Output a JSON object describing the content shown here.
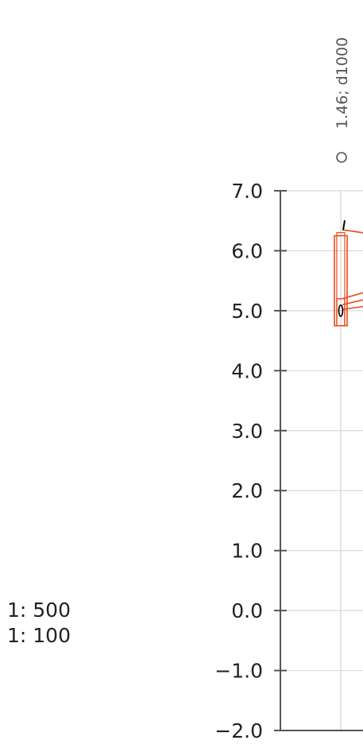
{
  "chart_data": {
    "type": "scatter",
    "title": "",
    "xlabel": "",
    "ylabel": "",
    "ylim": [
      -2.0,
      7.0
    ],
    "y_ticks": [
      {
        "value": 7.0,
        "label": "7.0"
      },
      {
        "value": 6.0,
        "label": "6.0"
      },
      {
        "value": 5.0,
        "label": "5.0"
      },
      {
        "value": 4.0,
        "label": "4.0"
      },
      {
        "value": 3.0,
        "label": "3.0"
      },
      {
        "value": 2.0,
        "label": "2.0"
      },
      {
        "value": 1.0,
        "label": "1.0"
      },
      {
        "value": 0.0,
        "label": "0.0"
      },
      {
        "value": -1.0,
        "label": "−1.0"
      },
      {
        "value": -2.0,
        "label": "−2.0"
      }
    ],
    "grid": true,
    "legend": {
      "placement": "top",
      "entries": [
        {
          "label": "1.46; d1000",
          "marker": "open-circle"
        }
      ]
    },
    "boxes": [
      {
        "low": 4.75,
        "high": 6.25,
        "color": "#e8491d"
      }
    ],
    "inner_boxes": [
      {
        "low": 4.75,
        "high": 5.2,
        "color": "#e8491d"
      }
    ],
    "point": {
      "y": 5.0,
      "marker": "ellipse"
    },
    "tick_mark_y": 6.4,
    "leader_lines": [
      {
        "from_y": 6.35,
        "to_y": 6.3,
        "color": "#e8491d"
      },
      {
        "from_y": 5.2,
        "to_y": 5.3,
        "color": "#e8491d"
      },
      {
        "from_y": 5.1,
        "to_y": 5.18,
        "color": "#e8491d"
      },
      {
        "from_y": 5.02,
        "to_y": 5.07,
        "color": "#e8491d"
      }
    ],
    "colors": {
      "axis": "#555555",
      "grid": "#d9d9d9",
      "box": "#e8491d",
      "text": "#222222"
    }
  },
  "scale_labels": [
    "1: 500",
    "1: 100"
  ]
}
